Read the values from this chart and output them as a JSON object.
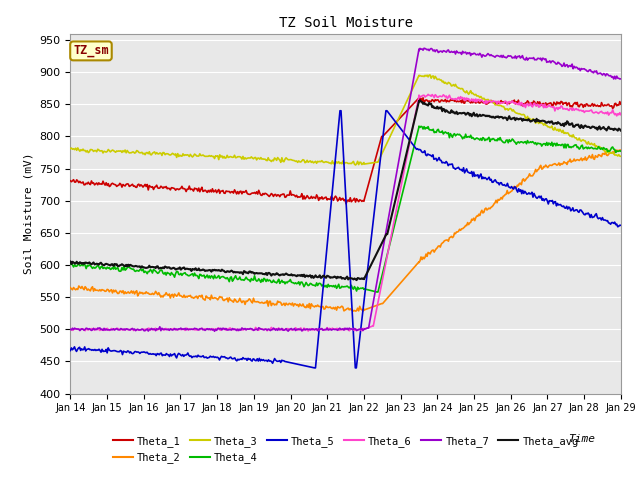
{
  "title": "TZ Soil Moisture",
  "xlabel": "Time",
  "ylabel": "Soil Moisture (mV)",
  "ylim": [
    400,
    960
  ],
  "yticks": [
    400,
    450,
    500,
    550,
    600,
    650,
    700,
    750,
    800,
    850,
    900,
    950
  ],
  "xtick_labels": [
    "Jan 14",
    "Jan 15",
    "Jan 16",
    "Jan 17",
    "Jan 18",
    "Jan 19",
    "Jan 20",
    "Jan 21",
    "Jan 22",
    "Jan 23",
    "Jan 24",
    "Jan 25",
    "Jan 26",
    "Jan 27",
    "Jan 28",
    "Jan 29"
  ],
  "legend_box_label": "TZ_sm",
  "fig_bg": "#ffffff",
  "plot_bg": "#e8e8e8",
  "grid_color": "#ffffff",
  "colors": {
    "Theta_1": "#cc0000",
    "Theta_2": "#ff8800",
    "Theta_3": "#cccc00",
    "Theta_4": "#00bb00",
    "Theta_5": "#0000cc",
    "Theta_6": "#ff44cc",
    "Theta_7": "#9900cc",
    "Theta_avg": "#111111"
  },
  "lw": 1.2
}
